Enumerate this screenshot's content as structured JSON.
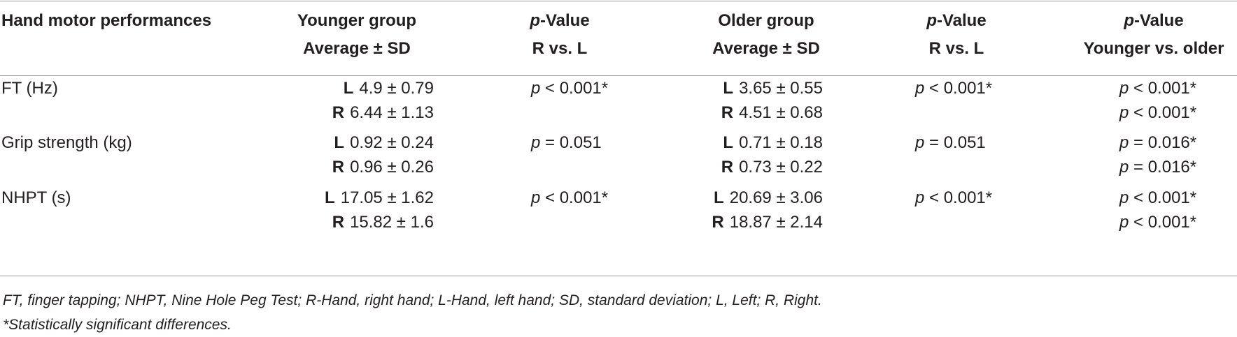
{
  "header": {
    "col1": "Hand motor performances",
    "col2_line1": "Younger group",
    "col2_line2": "Average ± SD",
    "col3_p": "p",
    "col3_rest": "-Value",
    "col3_line2": "R vs. L",
    "col4_line1": "Older group",
    "col4_line2": "Average ± SD",
    "col5_p": "p",
    "col5_rest": "-Value",
    "col5_line2": "R vs. L",
    "col6_p": "p",
    "col6_rest": "-Value",
    "col6_line2": "Younger vs. older"
  },
  "rows": [
    {
      "label": "FT (Hz)",
      "young_L_hand": "L",
      "young_L": "4.9 ± 0.79",
      "young_R_hand": "R",
      "young_R": "6.44 ± 1.13",
      "young_p_sym": "p",
      "young_p": " < 0.001*",
      "old_L_hand": "L",
      "old_L": "3.65 ± 0.55",
      "old_R_hand": "R",
      "old_R": "4.51 ± 0.68",
      "old_p_sym": "p",
      "old_p": " < 0.001*",
      "yo_L_sym": "p",
      "yo_L": " < 0.001*",
      "yo_R_sym": "p",
      "yo_R": " < 0.001*"
    },
    {
      "label": "Grip strength (kg)",
      "young_L_hand": "L",
      "young_L": "0.92 ± 0.24",
      "young_R_hand": "R",
      "young_R": "0.96 ± 0.26",
      "young_p_sym": "p",
      "young_p": " = 0.051",
      "old_L_hand": "L",
      "old_L": "0.71 ± 0.18",
      "old_R_hand": "R",
      "old_R": "0.73 ± 0.22",
      "old_p_sym": "p",
      "old_p": " = 0.051",
      "yo_L_sym": "p",
      "yo_L": " = 0.016*",
      "yo_R_sym": "p",
      "yo_R": " = 0.016*"
    },
    {
      "label": "NHPT (s)",
      "young_L_hand": "L",
      "young_L": "17.05 ± 1.62",
      "young_R_hand": "R",
      "young_R": "15.82 ± 1.6",
      "young_p_sym": "p",
      "young_p": " < 0.001*",
      "old_L_hand": "L",
      "old_L": "20.69 ± 3.06",
      "old_R_hand": "R",
      "old_R": "18.87 ± 2.14",
      "old_p_sym": "p",
      "old_p": " < 0.001*",
      "yo_L_sym": "p",
      "yo_L": " < 0.001*",
      "yo_R_sym": "p",
      "yo_R": " < 0.001*"
    }
  ],
  "footnotes": {
    "abbrev": "FT, finger tapping; NHPT, Nine Hole Peg Test; R-Hand, right hand; L-Hand, left hand; SD, standard deviation; L, Left; R, Right.",
    "significance": "*Statistically significant differences."
  }
}
